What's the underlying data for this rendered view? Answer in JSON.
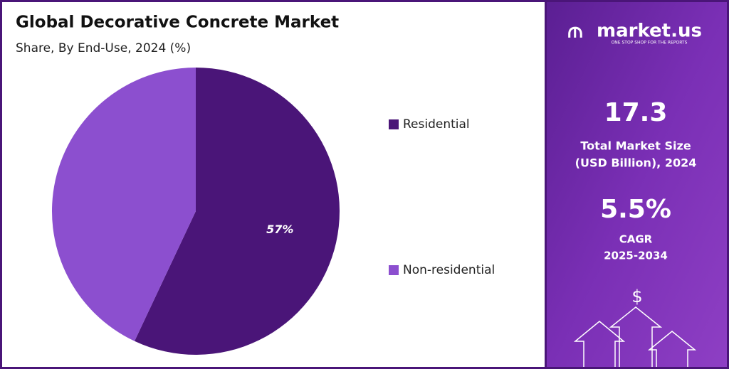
{
  "chart_data": {
    "type": "pie",
    "title": "Global Decorative Concrete Market",
    "subtitle": "Share, By End-Use, 2024 (%)",
    "categories": [
      "Residential",
      "Non-residential"
    ],
    "values": [
      57,
      43
    ],
    "value_labels": [
      "57%",
      null
    ],
    "colors": [
      "#4a1578",
      "#8c4fcf"
    ],
    "legend": "right"
  },
  "sidebar": {
    "logo": "market.us",
    "tagline": "ONE STOP SHOP FOR THE REPORTS",
    "market_size": "17.3",
    "market_size_label_1": "Total Market Size",
    "market_size_label_2": "(USD Billion), 2024",
    "cagr": "5.5%",
    "cagr_label_1": "CAGR",
    "cagr_label_2": "2025-2034",
    "icon": "$"
  }
}
